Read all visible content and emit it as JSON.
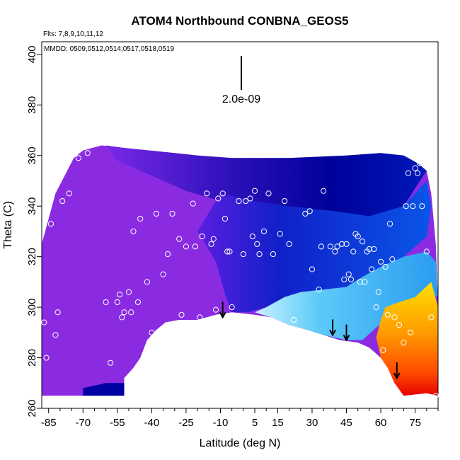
{
  "chart_data": {
    "type": "heatmap",
    "title": "ATOM4 Northbound CONBNA_GEOS5",
    "annotations": {
      "flights": "Flts: 7,8,9,10,11,12",
      "dates": "MMDD: 0509,0512,0514,0517,0518,0519",
      "scale_label": "2.0e-09"
    },
    "xlabel": "Latitude (deg N)",
    "ylabel": "Theta (C)",
    "xlim": [
      -88,
      85
    ],
    "ylim": [
      260,
      405
    ],
    "x_ticks": [
      -85,
      -70,
      -55,
      -40,
      -25,
      -10,
      5,
      15,
      30,
      45,
      60,
      75
    ],
    "y_ticks": [
      260,
      280,
      300,
      320,
      340,
      360,
      380,
      400
    ],
    "colors": {
      "purple": "#8a2be2",
      "dark_purple": "#6a1bd6",
      "navy": "#0000a0",
      "blue": "#0a50e0",
      "light_blue": "#3aa8f0",
      "cyan": "#6fd8ff",
      "yellow": "#ffd000",
      "orange": "#ff8000",
      "red": "#ee1000"
    },
    "tropopause_arrows": [
      {
        "x": -9,
        "y": 296
      },
      {
        "x": 39,
        "y": 289
      },
      {
        "x": 45,
        "y": 287
      },
      {
        "x": 67,
        "y": 272
      }
    ],
    "observations": [
      {
        "x": -87,
        "y": 294
      },
      {
        "x": -86,
        "y": 280
      },
      {
        "x": -84,
        "y": 333
      },
      {
        "x": -82,
        "y": 289
      },
      {
        "x": -81,
        "y": 298
      },
      {
        "x": -79,
        "y": 342
      },
      {
        "x": -76,
        "y": 345
      },
      {
        "x": -72,
        "y": 359
      },
      {
        "x": -68,
        "y": 361
      },
      {
        "x": -60,
        "y": 302
      },
      {
        "x": -58,
        "y": 278
      },
      {
        "x": -55,
        "y": 302
      },
      {
        "x": -54,
        "y": 305
      },
      {
        "x": -53,
        "y": 296
      },
      {
        "x": -52,
        "y": 298
      },
      {
        "x": -50,
        "y": 306
      },
      {
        "x": -49,
        "y": 298
      },
      {
        "x": -48,
        "y": 330
      },
      {
        "x": -46,
        "y": 302
      },
      {
        "x": -45,
        "y": 335
      },
      {
        "x": -42,
        "y": 310
      },
      {
        "x": -40,
        "y": 290
      },
      {
        "x": -38,
        "y": 337
      },
      {
        "x": -35,
        "y": 313
      },
      {
        "x": -33,
        "y": 321
      },
      {
        "x": -31,
        "y": 337
      },
      {
        "x": -28,
        "y": 327
      },
      {
        "x": -27,
        "y": 297
      },
      {
        "x": -25,
        "y": 324
      },
      {
        "x": -22,
        "y": 341
      },
      {
        "x": -21,
        "y": 324
      },
      {
        "x": -19,
        "y": 296
      },
      {
        "x": -18,
        "y": 328
      },
      {
        "x": -16,
        "y": 345
      },
      {
        "x": -14,
        "y": 325
      },
      {
        "x": -13,
        "y": 327
      },
      {
        "x": -12,
        "y": 299
      },
      {
        "x": -11,
        "y": 343
      },
      {
        "x": -9,
        "y": 345
      },
      {
        "x": -8,
        "y": 335
      },
      {
        "x": -7,
        "y": 322
      },
      {
        "x": -6,
        "y": 322
      },
      {
        "x": -5,
        "y": 300
      },
      {
        "x": -2,
        "y": 342
      },
      {
        "x": 0,
        "y": 321
      },
      {
        "x": 1,
        "y": 342
      },
      {
        "x": 3,
        "y": 343
      },
      {
        "x": 4,
        "y": 328
      },
      {
        "x": 5,
        "y": 346
      },
      {
        "x": 6,
        "y": 325
      },
      {
        "x": 7,
        "y": 321
      },
      {
        "x": 9,
        "y": 330
      },
      {
        "x": 11,
        "y": 345
      },
      {
        "x": 13,
        "y": 321
      },
      {
        "x": 16,
        "y": 329
      },
      {
        "x": 18,
        "y": 342
      },
      {
        "x": 20,
        "y": 325
      },
      {
        "x": 22,
        "y": 295
      },
      {
        "x": 27,
        "y": 337
      },
      {
        "x": 29,
        "y": 338
      },
      {
        "x": 30,
        "y": 315
      },
      {
        "x": 33,
        "y": 307
      },
      {
        "x": 34,
        "y": 324
      },
      {
        "x": 35,
        "y": 346
      },
      {
        "x": 38,
        "y": 324
      },
      {
        "x": 40,
        "y": 322
      },
      {
        "x": 41,
        "y": 324
      },
      {
        "x": 43,
        "y": 325
      },
      {
        "x": 44,
        "y": 311
      },
      {
        "x": 45,
        "y": 325
      },
      {
        "x": 46,
        "y": 313
      },
      {
        "x": 47,
        "y": 311
      },
      {
        "x": 48,
        "y": 322
      },
      {
        "x": 49,
        "y": 329
      },
      {
        "x": 50,
        "y": 328
      },
      {
        "x": 51,
        "y": 310
      },
      {
        "x": 52,
        "y": 326
      },
      {
        "x": 53,
        "y": 310
      },
      {
        "x": 54,
        "y": 322
      },
      {
        "x": 55,
        "y": 323
      },
      {
        "x": 56,
        "y": 315
      },
      {
        "x": 57,
        "y": 323
      },
      {
        "x": 58,
        "y": 300
      },
      {
        "x": 59,
        "y": 306
      },
      {
        "x": 60,
        "y": 318
      },
      {
        "x": 61,
        "y": 283
      },
      {
        "x": 62,
        "y": 316
      },
      {
        "x": 63,
        "y": 297
      },
      {
        "x": 64,
        "y": 333
      },
      {
        "x": 65,
        "y": 319
      },
      {
        "x": 66,
        "y": 296
      },
      {
        "x": 68,
        "y": 293
      },
      {
        "x": 70,
        "y": 286
      },
      {
        "x": 71,
        "y": 340
      },
      {
        "x": 72,
        "y": 353
      },
      {
        "x": 73,
        "y": 290
      },
      {
        "x": 74,
        "y": 340
      },
      {
        "x": 75,
        "y": 355
      },
      {
        "x": 76,
        "y": 353
      },
      {
        "x": 77,
        "y": 357
      },
      {
        "x": 78,
        "y": 340
      },
      {
        "x": 80,
        "y": 322
      },
      {
        "x": 82,
        "y": 296
      },
      {
        "x": 84,
        "y": 265
      }
    ]
  }
}
